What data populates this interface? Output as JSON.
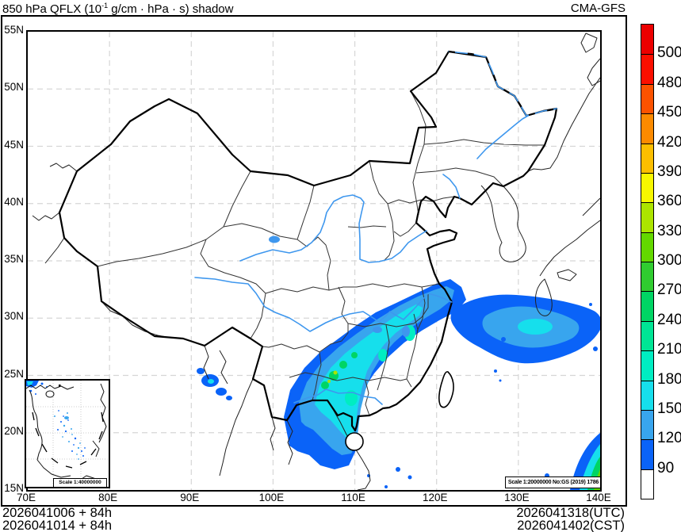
{
  "title": {
    "pre": "850 hPa QFLX (10",
    "sup": "-1",
    "post": " g/cm · hPa · s) shadow"
  },
  "brand": "CMA-GFS",
  "footer": {
    "left_line1": "2026041006 + 84h",
    "left_line2": "2026041014 + 84h",
    "right_line1": "2026041318(UTC)",
    "right_line2": "2026041402(CST)"
  },
  "map": {
    "scale_note": "Scale 1:20000000 No:GS (2019) 1786",
    "inset_scale_note": "Scale 1:40000000"
  },
  "axes": {
    "lat_labels": [
      "55N",
      "50N",
      "45N",
      "40N",
      "35N",
      "30N",
      "25N",
      "20N",
      "15N"
    ],
    "lon_labels": [
      "70E",
      "80E",
      "90E",
      "100E",
      "110E",
      "120E",
      "130E",
      "140E"
    ],
    "grid_lats": [
      20,
      25,
      30,
      35,
      40,
      45,
      50
    ],
    "grid_lons": [
      80,
      90,
      100,
      110,
      120,
      130
    ]
  },
  "colorbar": {
    "ticks": [
      "500",
      "480",
      "450",
      "420",
      "390",
      "360",
      "330",
      "300",
      "270",
      "240",
      "210",
      "180",
      "150",
      "120",
      "90"
    ],
    "segments_top_to_bottom": [
      "500",
      "480",
      "450",
      "420",
      "390",
      "360",
      "330",
      "300",
      "270",
      "240",
      "210",
      "180",
      "150",
      "120",
      "90",
      "white"
    ]
  },
  "palette": {
    "white": "#FFFFFF",
    "90": "#0A63F8",
    "120": "#38A5EE",
    "150": "#16DFEC",
    "180": "#00EDC2",
    "210": "#00E595",
    "240": "#00D564",
    "270": "#30CC30",
    "300": "#63D800",
    "330": "#ACE400",
    "360": "#F7F700",
    "390": "#FCBE00",
    "420": "#FC8A00",
    "450": "#FC5200",
    "480": "#FB0F00",
    "500": "#EC0000"
  },
  "colors": {
    "border": "#000000",
    "province": "#333333",
    "river": "#3E97EE",
    "neighbor": "#222222",
    "grid": "#D6D6D6",
    "background": "#FFFFFF"
  },
  "chart_data": {
    "type": "heatmap",
    "subtype": "filled_contour_map",
    "title": "850 hPa QFLX (10^-1 g/cm·hPa·s) shadow",
    "model": "CMA-GFS",
    "variable": "QFLX moisture flux",
    "level_hPa": 850,
    "units": "10^-1 g/cm·hPa·s",
    "init_times": [
      "2026041006 + 84h",
      "2026041014 + 84h"
    ],
    "valid_time_utc": "2026041318(UTC)",
    "valid_time_cst": "2026041402(CST)",
    "lon_range_deg_e": [
      70,
      140
    ],
    "lat_range_deg_n": [
      15,
      55
    ],
    "grid_spacing": {
      "lon_deg": 10,
      "lat_deg": 5
    },
    "contour_levels": [
      90,
      120,
      150,
      180,
      210,
      240,
      270,
      300,
      330,
      360,
      390,
      420,
      450,
      480,
      500
    ],
    "palette_low_to_high": [
      "#FFFFFF",
      "#0A63F8",
      "#38A5EE",
      "#16DFEC",
      "#00EDC2",
      "#00E595",
      "#00D564",
      "#30CC30",
      "#63D800",
      "#ACE400",
      "#F7F700",
      "#FCBE00",
      "#FC8A00",
      "#FC5200",
      "#FB0F00",
      "#EC0000"
    ],
    "legend_position": "right",
    "map_scale": "1:20000000",
    "inset_map_scale": "1:40000000",
    "shaded_regions": [
      {
        "name": "southeast-china-moisture-band",
        "description": "SW-NE oriented band from Leizhou Peninsula / Guangxi (~108E, 21N) through Guangdong and Jiangxi to the Zhejiang coast (~122E, 30N)",
        "peak_values": "150-240, isolated 240-330 cores over northern Guangdong"
      },
      {
        "name": "east-china-sea-blob",
        "description": "Zonal maximum ~28.5-31.5N, 122-139E east of the Yangtze mouth",
        "peak_values": "120-180"
      },
      {
        "name": "yunnan-guizhou-specks",
        "description": "Scattered cells ~25-27.5N, 104.5-108E",
        "peak_values": "90-180"
      },
      {
        "name": "map-corner-system",
        "description": "Concentric bands clipped at the southeast map corner ~15-20N, 137-140E",
        "peak_values": "300-360 at corner"
      },
      {
        "name": "south-china-sea-scatter",
        "description": "Scattered 90-150 cells shown in the South China Sea inset map"
      }
    ]
  }
}
